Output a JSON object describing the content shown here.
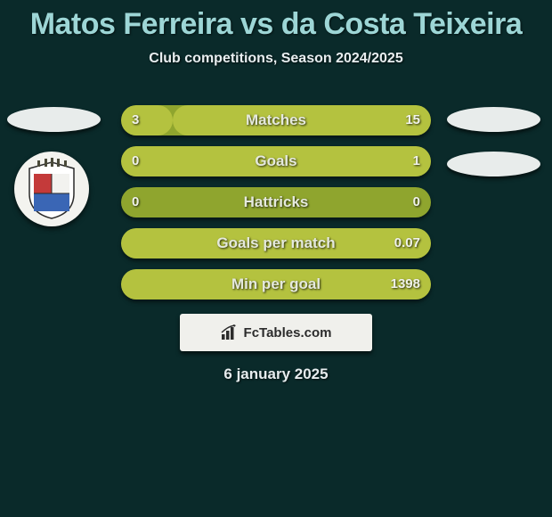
{
  "header": {
    "title": "Matos Ferreira vs da Costa Teixeira",
    "subtitle": "Club competitions, Season 2024/2025",
    "title_color": "#9dd6d6",
    "subtitle_color": "#e8eef0"
  },
  "background_color": "#0a2a2a",
  "bars": {
    "track_color": "#8fa52e",
    "fill_color": "#b4c23f",
    "text_color": "#e5e9dd",
    "rows": [
      {
        "label": "Matches",
        "left_val": "3",
        "right_val": "15",
        "left_pct": 16.7,
        "right_pct": 83.3
      },
      {
        "label": "Goals",
        "left_val": "0",
        "right_val": "1",
        "left_pct": 0.0,
        "right_pct": 100.0
      },
      {
        "label": "Hattricks",
        "left_val": "0",
        "right_val": "0",
        "left_pct": 0.0,
        "right_pct": 0.0
      },
      {
        "label": "Goals per match",
        "left_val": "",
        "right_val": "0.07",
        "left_pct": 0.0,
        "right_pct": 100.0
      },
      {
        "label": "Min per goal",
        "left_val": "",
        "right_val": "1398",
        "left_pct": 0.0,
        "right_pct": 100.0
      }
    ]
  },
  "side_ovals": {
    "color": "#e8eceb",
    "left_count": 1,
    "right_count": 2
  },
  "crest": {
    "bg": "#f3f3ef"
  },
  "footer": {
    "site_label": "FcTables.com",
    "date": "6 january 2025",
    "badge_bg": "#f0f0ec"
  }
}
